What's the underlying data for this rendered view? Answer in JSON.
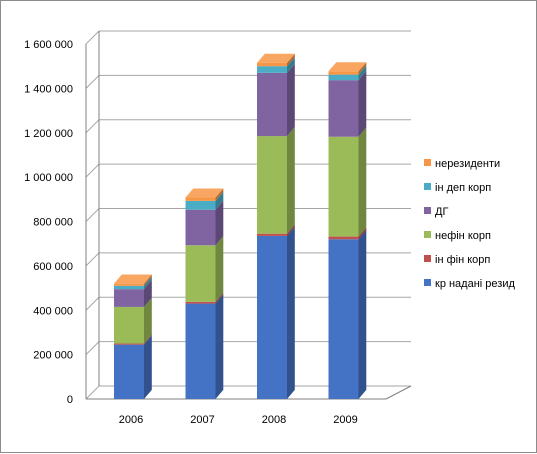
{
  "chart_data": {
    "type": "bar",
    "stacked": true,
    "three_d": true,
    "categories": [
      "2006",
      "2007",
      "2008",
      "2009"
    ],
    "series": [
      {
        "name": "кр надані резид",
        "color": "#4472C4",
        "values": [
          245000,
          430000,
          735000,
          720000
        ]
      },
      {
        "name": "ін фін корп",
        "color": "#C0504D",
        "values": [
          5000,
          8000,
          10000,
          12000
        ]
      },
      {
        "name": "нефін корп",
        "color": "#9BBB59",
        "values": [
          165000,
          255000,
          440000,
          450000
        ]
      },
      {
        "name": "ДГ",
        "color": "#8064A2",
        "values": [
          80000,
          160000,
          285000,
          255000
        ]
      },
      {
        "name": "ін деп корп",
        "color": "#4BACC6",
        "values": [
          15000,
          40000,
          30000,
          25000
        ]
      },
      {
        "name": "нерезиденти",
        "color": "#F79646",
        "values": [
          10000,
          15000,
          15000,
          15000
        ]
      }
    ],
    "y_ticks": [
      "0",
      "200 000",
      "400 000",
      "600 000",
      "800 000",
      "1 000 000",
      "1 200 000",
      "1 400 000",
      "1 600 000"
    ],
    "ylim": [
      0,
      1600000
    ],
    "grid": true,
    "legend_position": "right"
  }
}
